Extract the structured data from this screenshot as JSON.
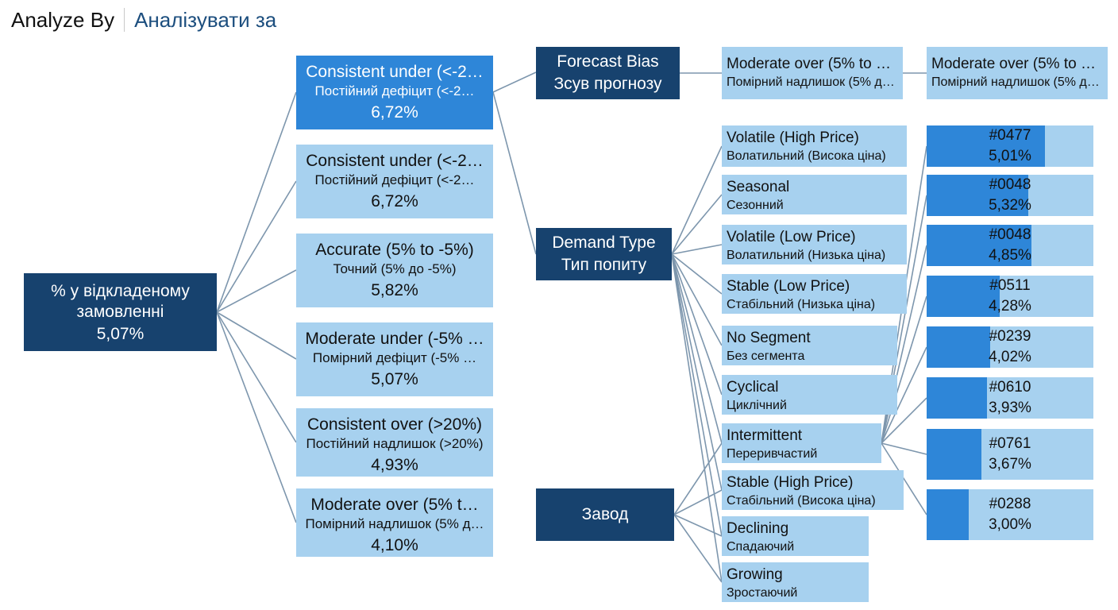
{
  "header": {
    "title": "Analyze By",
    "subtitle": "Аналізувати за"
  },
  "root": {
    "label": "% у відкладеному замовленні",
    "value": "5,07%"
  },
  "level1": [
    {
      "title": "Consistent under (<-2…",
      "subtitle": "Постійний дефіцит (<-2…",
      "value": "6,72%"
    },
    {
      "title": "Consistent under (<-2…",
      "subtitle": "Постійний дефіцит (<-2…",
      "value": "6,72%"
    },
    {
      "title": "Accurate (5% to -5%)",
      "subtitle": "Точний (5% до -5%)",
      "value": "5,82%"
    },
    {
      "title": "Moderate under (-5% …",
      "subtitle": "Помірний дефіцит (-5% …",
      "value": "5,07%"
    },
    {
      "title": "Consistent over (>20%)",
      "subtitle": "Постійний надлишок (>20%)",
      "value": "4,93%"
    },
    {
      "title": "Moderate over (5% t…",
      "subtitle": "Помірний надлишок (5% д…",
      "value": "4,10%"
    }
  ],
  "headers": {
    "forecast_bias": [
      "Forecast Bias",
      "Зсув прогнозу"
    ],
    "demand_type": [
      "Demand Type",
      "Тип попиту"
    ],
    "plant": [
      "Завод"
    ]
  },
  "forecast_items": [
    {
      "title": "Moderate over (5% to …",
      "subtitle": "Помірний надлишок (5% до …"
    }
  ],
  "forecast_items2": [
    {
      "title": "Moderate over (5% to …",
      "subtitle": "Помірний надлишок (5% д…"
    }
  ],
  "demand_items": [
    {
      "title": "Volatile (High Price)",
      "subtitle": "Волатильний (Висока ціна)"
    },
    {
      "title": "Seasonal",
      "subtitle": "Сезонний"
    },
    {
      "title": "Volatile (Low Price)",
      "subtitle": "Волатильний (Низька ціна)"
    },
    {
      "title": "Stable (Low Price)",
      "subtitle": "Стабільний (Низька ціна)"
    },
    {
      "title": "No Segment",
      "subtitle": "Без сегмента"
    },
    {
      "title": "Cyclical",
      "subtitle": "Циклічний"
    },
    {
      "title": "Intermittent",
      "subtitle": "Переривчастий"
    },
    {
      "title": "Stable (High Price)",
      "subtitle": "Стабільний (Висока ціна)"
    },
    {
      "title": "Declining",
      "subtitle": "Спадаючий"
    },
    {
      "title": "Growing",
      "subtitle": "Зростаючий"
    }
  ],
  "plants": [
    {
      "id": "#0477",
      "value": "5,01%",
      "fill": 0.71
    },
    {
      "id": "#0048",
      "value": "5,32%",
      "fill": 0.61
    },
    {
      "id": "#0048",
      "value": "4,85%",
      "fill": 0.63
    },
    {
      "id": "#0511",
      "value": "4,28%",
      "fill": 0.44
    },
    {
      "id": "#0239",
      "value": "4,02%",
      "fill": 0.38
    },
    {
      "id": "#0610",
      "value": "3,93%",
      "fill": 0.36
    },
    {
      "id": "#0761",
      "value": "3,67%",
      "fill": 0.33
    },
    {
      "id": "#0288",
      "value": "3,00%",
      "fill": 0.25
    }
  ],
  "colors": {
    "dark": "#17426e",
    "selected": "#2e86d8",
    "light": "#a7d1ef",
    "link": "#7d96ad"
  }
}
